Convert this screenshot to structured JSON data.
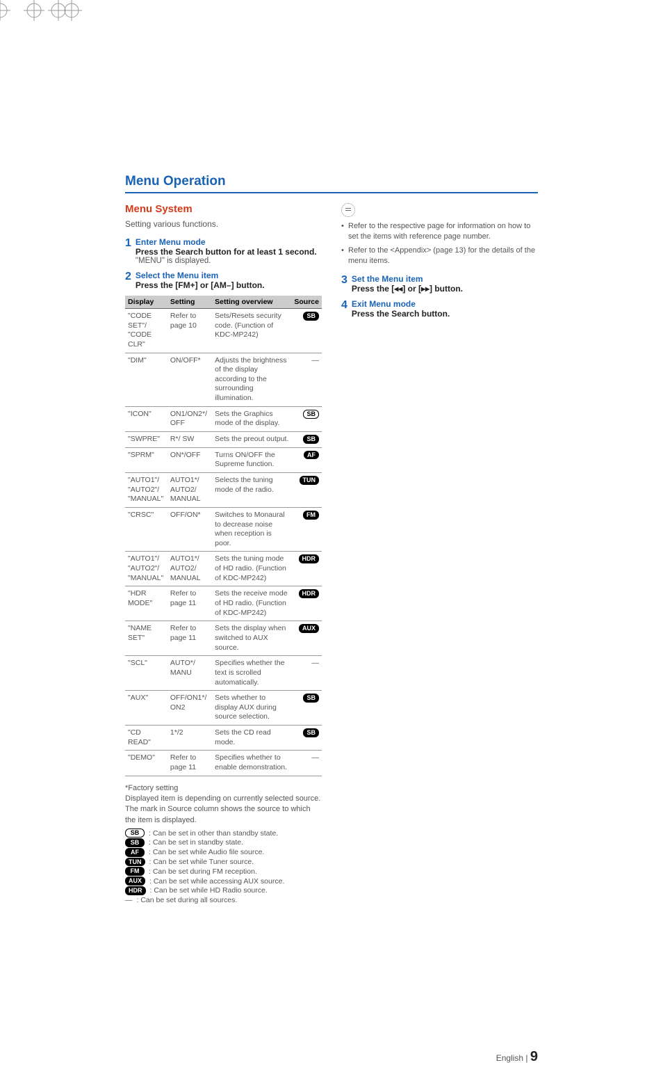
{
  "accent_color": "#1a62b5",
  "subhead_color": "#d43b1a",
  "section_title": "Menu Operation",
  "subsection_title": "Menu System",
  "intro_text": "Setting various functions.",
  "steps_left": [
    {
      "num": "1",
      "title": "Enter Menu mode",
      "line": "Press the Search button for at least 1 second.",
      "note": "\"MENU\" is displayed."
    },
    {
      "num": "2",
      "title": "Select the Menu item",
      "line": "Press the [FM+] or [AM–] button.",
      "note": ""
    }
  ],
  "table": {
    "headers": [
      "Display",
      "Setting",
      "Setting overview",
      "Source"
    ],
    "rows": [
      {
        "display": "\"CODE SET\"/\n\"CODE CLR\"",
        "setting": "Refer to page 10",
        "overview": "Sets/Resets security code. (Function of KDC-MP242)",
        "badge": "SB",
        "badge_style": "black"
      },
      {
        "display": "\"DIM\"",
        "setting": "ON/OFF*",
        "overview": "Adjusts the brightness of the display according to the surrounding illumination.",
        "badge": "—",
        "badge_style": "none"
      },
      {
        "display": "\"ICON\"",
        "setting": "ON1/ON2*/\nOFF",
        "overview": "Sets the Graphics mode of the display.",
        "badge": "SB",
        "badge_style": "outline"
      },
      {
        "display": "\"SWPRE\"",
        "setting": "R*/ SW",
        "overview": "Sets the preout output.",
        "badge": "SB",
        "badge_style": "black"
      },
      {
        "display": "\"SPRM\"",
        "setting": "ON*/OFF",
        "overview": "Turns ON/OFF the Supreme function.",
        "badge": "AF",
        "badge_style": "black"
      },
      {
        "display": "\"AUTO1\"/\n\"AUTO2\"/\n\"MANUAL\"",
        "setting": "AUTO1*/\nAUTO2/\nMANUAL",
        "overview": "Selects the tuning mode of the radio.",
        "badge": "TUN",
        "badge_style": "black"
      },
      {
        "display": "\"CRSC\"",
        "setting": "OFF/ON*",
        "overview": "Switches to Monaural to decrease noise when reception is poor.",
        "badge": "FM",
        "badge_style": "black"
      },
      {
        "display": "\"AUTO1\"/\n\"AUTO2\"/\n\"MANUAL\"",
        "setting": "AUTO1*/\nAUTO2/\nMANUAL",
        "overview": "Sets the tuning mode of HD radio. (Function of KDC-MP242)",
        "badge": "HDR",
        "badge_style": "black"
      },
      {
        "display": "\"HDR MODE\"",
        "setting": "Refer to page 11",
        "overview": "Sets the receive mode of HD radio. (Function of KDC-MP242)",
        "badge": "HDR",
        "badge_style": "black"
      },
      {
        "display": "\"NAME SET\"",
        "setting": "Refer to page 11",
        "overview": "Sets the display when switched to AUX source.",
        "badge": "AUX",
        "badge_style": "black"
      },
      {
        "display": "\"SCL\"",
        "setting": "AUTO*/\nMANU",
        "overview": "Specifies whether the text is scrolled automatically.",
        "badge": "—",
        "badge_style": "none"
      },
      {
        "display": "\"AUX\"",
        "setting": "OFF/ON1*/\nON2",
        "overview": "Sets whether to display AUX during source selection.",
        "badge": "SB",
        "badge_style": "black"
      },
      {
        "display": "\"CD READ\"",
        "setting": "1*/2",
        "overview": "Sets the CD read mode.",
        "badge": "SB",
        "badge_style": "black"
      },
      {
        "display": "\"DEMO\"",
        "setting": "Refer to page 11",
        "overview": "Specifies whether to enable demonstration.",
        "badge": "—",
        "badge_style": "none"
      }
    ]
  },
  "footnote_lead": "*Factory setting",
  "footnote_body": "Displayed item is depending on currently selected source. The mark in Source column shows the source to which the item is displayed.",
  "legend": [
    {
      "badge": "SB",
      "style": "outline",
      "text": ": Can be set in other than standby state."
    },
    {
      "badge": "SB",
      "style": "black",
      "text": ": Can be set in standby state."
    },
    {
      "badge": "AF",
      "style": "black",
      "text": ": Can be set while Audio file source."
    },
    {
      "badge": "TUN",
      "style": "black",
      "text": ": Can be set while Tuner source."
    },
    {
      "badge": "FM",
      "style": "black",
      "text": ": Can be set during FM reception."
    },
    {
      "badge": "AUX",
      "style": "black",
      "text": ": Can be set while accessing AUX source."
    },
    {
      "badge": "HDR",
      "style": "black",
      "text": ": Can be set while HD Radio source."
    },
    {
      "badge": "—",
      "style": "none",
      "text": ": Can be set during all sources."
    }
  ],
  "right_notes": [
    "Refer to the respective page for information on how to set the items with reference page number.",
    "Refer to the <Appendix> (page 13) for the details of the menu items."
  ],
  "steps_right": [
    {
      "num": "3",
      "title": "Set the Menu item",
      "line": "Press the [◂◂] or [▸▸] button.",
      "note": ""
    },
    {
      "num": "4",
      "title": "Exit Menu mode",
      "line": "Press the Search button.",
      "note": ""
    }
  ],
  "page_label": "English   |",
  "page_number": "9"
}
